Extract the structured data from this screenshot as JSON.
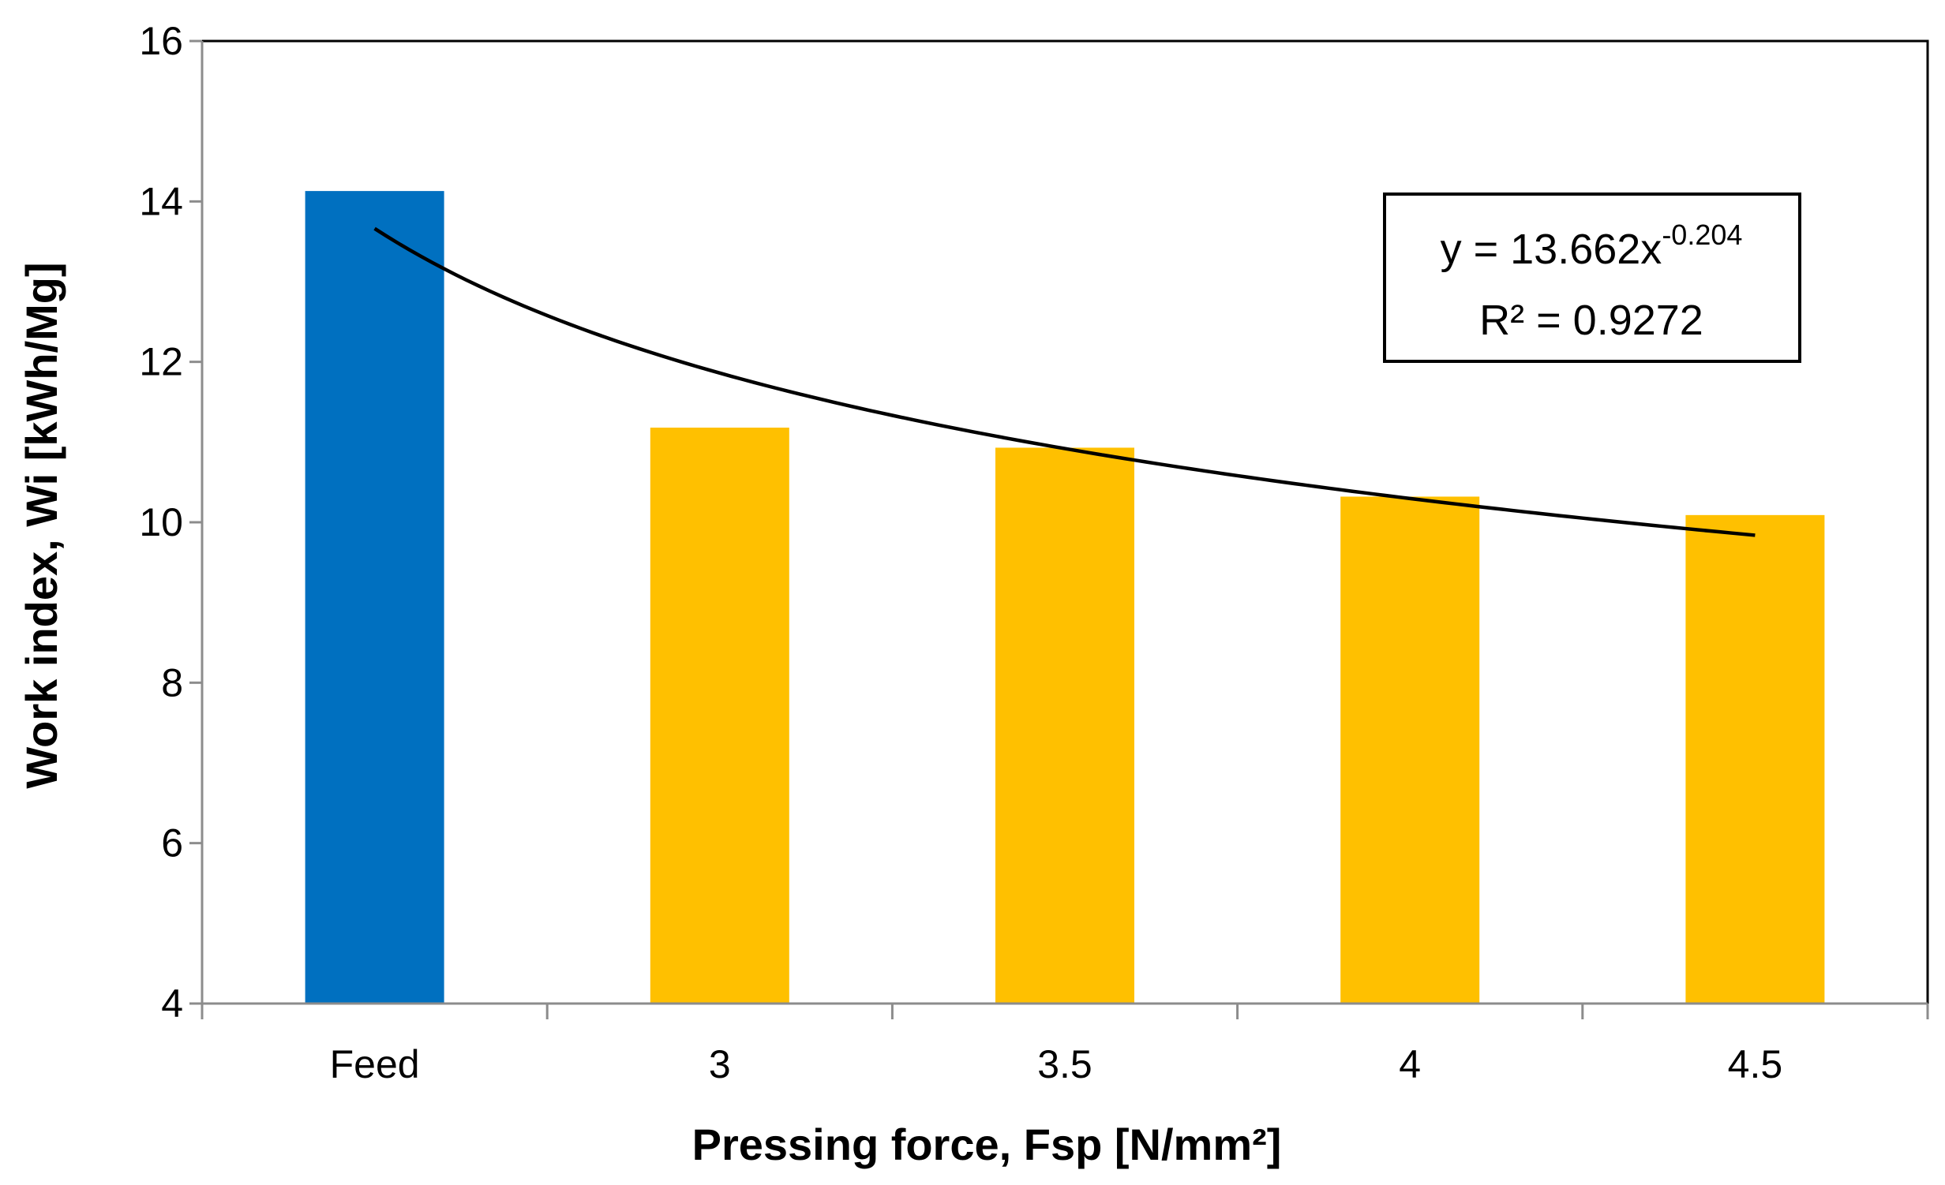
{
  "chart_data": {
    "type": "bar",
    "categories": [
      "Feed",
      "3",
      "3.5",
      "4",
      "4.5"
    ],
    "values": [
      14.13,
      11.18,
      10.93,
      10.32,
      10.09
    ],
    "colors": [
      "#0070C0",
      "#FFC000",
      "#FFC000",
      "#FFC000",
      "#FFC000"
    ],
    "title": "",
    "xlabel": "Pressing force, Fsp [N/mm²]",
    "ylabel": "Work index, Wi [kWh/Mg]",
    "ylim": [
      4,
      16
    ],
    "yticks": [
      4,
      6,
      8,
      10,
      12,
      14,
      16
    ],
    "grid": false,
    "trendline": {
      "type": "power",
      "coefficient": 13.662,
      "exponent": -0.204,
      "color": "#000000",
      "equation_prefix": "y = 13.662x",
      "equation_exponent": "-0.204",
      "r_squared_label": "R² = 0.9272"
    }
  }
}
